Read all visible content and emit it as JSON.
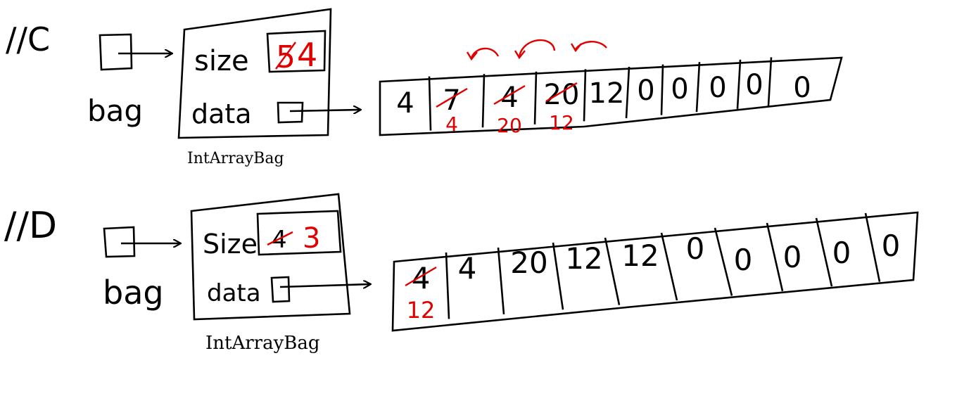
{
  "colors": {
    "ink": "#000000",
    "correction": "#e00000",
    "background": "#ffffff"
  },
  "sections": [
    {
      "label": "//C",
      "variable": "bag",
      "object_type": "IntArrayBag",
      "fields": [
        {
          "name": "size",
          "old_value": "5",
          "new_value": "4"
        },
        {
          "name": "data",
          "value_kind": "reference"
        }
      ],
      "array": [
        {
          "value": "4"
        },
        {
          "value": "7",
          "struck": true,
          "replacement": "4"
        },
        {
          "value": "4",
          "struck": true,
          "replacement": "20"
        },
        {
          "value": "20",
          "struck": true,
          "replacement": "12"
        },
        {
          "value": "12"
        },
        {
          "value": "0"
        },
        {
          "value": "0"
        },
        {
          "value": "0"
        },
        {
          "value": "0"
        },
        {
          "value": "0"
        }
      ],
      "shift_arrows": 3
    },
    {
      "label": "//D",
      "variable": "bag",
      "object_type": "IntArrayBag",
      "fields": [
        {
          "name": "Size",
          "old_value": "4",
          "new_value": "3"
        },
        {
          "name": "data",
          "value_kind": "reference"
        }
      ],
      "array": [
        {
          "value": "4",
          "struck": true,
          "replacement": "12"
        },
        {
          "value": "4"
        },
        {
          "value": "20"
        },
        {
          "value": "12"
        },
        {
          "value": "12"
        },
        {
          "value": "0"
        },
        {
          "value": "0"
        },
        {
          "value": "0"
        },
        {
          "value": "0"
        },
        {
          "value": "0"
        }
      ],
      "shift_arrows": 0
    }
  ]
}
